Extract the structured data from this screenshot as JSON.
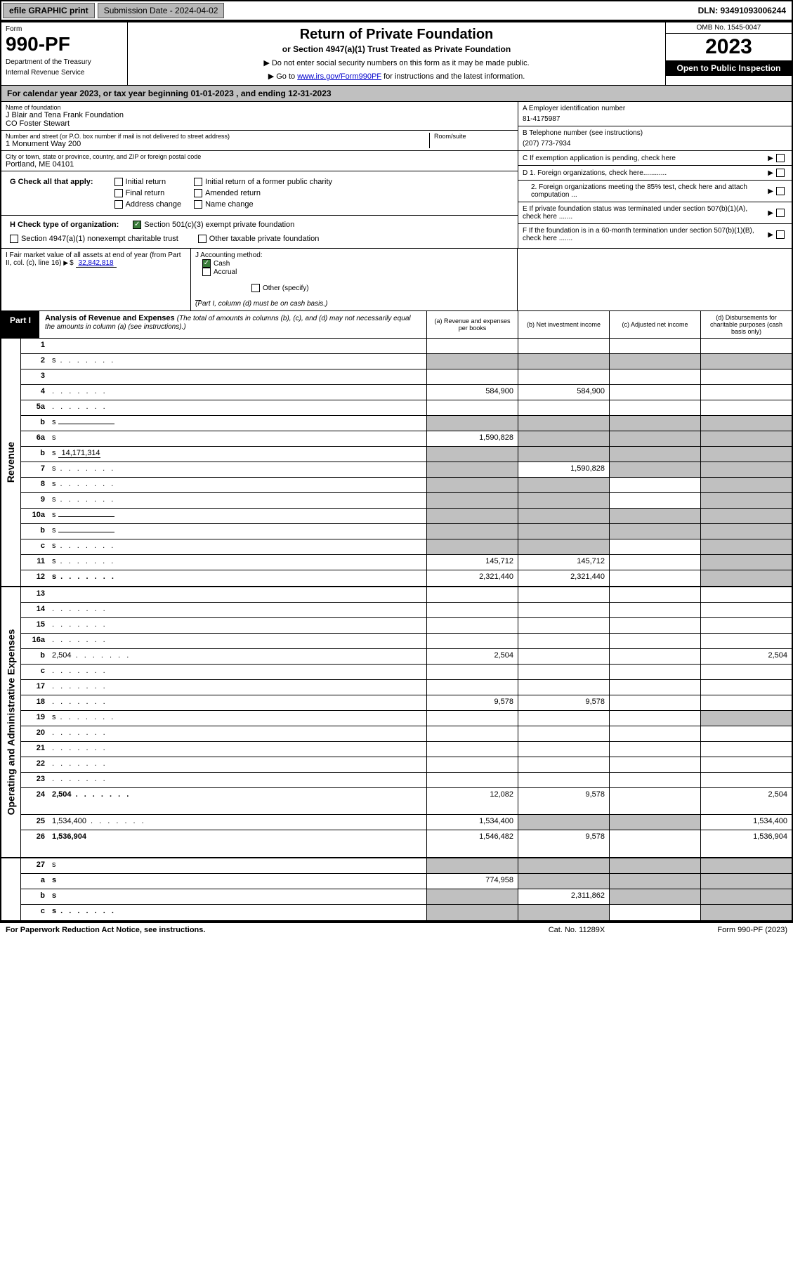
{
  "topbar": {
    "efile": "efile GRAPHIC print",
    "submission": "Submission Date - 2024-04-02",
    "dln": "DLN: 93491093006244"
  },
  "header": {
    "form_word": "Form",
    "form_number": "990-PF",
    "dept": "Department of the Treasury",
    "irs": "Internal Revenue Service",
    "title": "Return of Private Foundation",
    "subtitle": "or Section 4947(a)(1) Trust Treated as Private Foundation",
    "note1": "▶ Do not enter social security numbers on this form as it may be made public.",
    "note2_prefix": "▶ Go to ",
    "note2_link": "www.irs.gov/Form990PF",
    "note2_suffix": " for instructions and the latest information.",
    "omb": "OMB No. 1545-0047",
    "year": "2023",
    "open_public": "Open to Public Inspection"
  },
  "calendar": "For calendar year 2023, or tax year beginning 01-01-2023             , and ending 12-31-2023",
  "foundation": {
    "name_label": "Name of foundation",
    "name1": "J Blair and Tena Frank Foundation",
    "name2": "CO Foster Stewart",
    "addr_label": "Number and street (or P.O. box number if mail is not delivered to street address)",
    "addr": "1 Monument Way 200",
    "room_label": "Room/suite",
    "city_label": "City or town, state or province, country, and ZIP or foreign postal code",
    "city": "Portland, ME  04101"
  },
  "right_info": {
    "a_label": "A Employer identification number",
    "a_val": "81-4175987",
    "b_label": "B Telephone number (see instructions)",
    "b_val": "(207) 773-7934",
    "c_label": "C If exemption application is pending, check here",
    "d1_label": "D 1. Foreign organizations, check here............",
    "d2_label": "2. Foreign organizations meeting the 85% test, check here and attach computation ...",
    "e_label": "E  If private foundation status was terminated under section 507(b)(1)(A), check here .......",
    "f_label": "F  If the foundation is in a 60-month termination under section 507(b)(1)(B), check here ......."
  },
  "checks": {
    "g_label": "G Check all that apply:",
    "initial_return": "Initial return",
    "initial_former": "Initial return of a former public charity",
    "final_return": "Final return",
    "amended": "Amended return",
    "addr_change": "Address change",
    "name_change": "Name change",
    "h_label": "H Check type of organization:",
    "h_501c3": "Section 501(c)(3) exempt private foundation",
    "h_4947": "Section 4947(a)(1) nonexempt charitable trust",
    "h_other_tax": "Other taxable private foundation",
    "i_label": "I Fair market value of all assets at end of year (from Part II, col. (c), line 16)",
    "i_val": "32,842,818",
    "j_label": "J Accounting method:",
    "j_cash": "Cash",
    "j_accrual": "Accrual",
    "j_other": "Other (specify)",
    "j_note": "(Part I, column (d) must be on cash basis.)"
  },
  "part1": {
    "label": "Part I",
    "title": "Analysis of Revenue and Expenses",
    "note": "(The total of amounts in columns (b), (c), and (d) may not necessarily equal the amounts in column (a) (see instructions).)",
    "col_a": "(a)   Revenue and expenses per books",
    "col_b": "(b)   Net investment income",
    "col_c": "(c)   Adjusted net income",
    "col_d": "(d)   Disbursements for charitable purposes (cash basis only)"
  },
  "side_labels": {
    "revenue": "Revenue",
    "expenses": "Operating and Administrative Expenses"
  },
  "rows": [
    {
      "n": "1",
      "d": "",
      "a": "",
      "b": "",
      "c": ""
    },
    {
      "n": "2",
      "d": "s",
      "a": "s",
      "b": "s",
      "c": "s",
      "dotted": true
    },
    {
      "n": "3",
      "d": "",
      "a": "",
      "b": "",
      "c": ""
    },
    {
      "n": "4",
      "d": "",
      "a": "584,900",
      "b": "584,900",
      "c": "",
      "dotted": true
    },
    {
      "n": "5a",
      "d": "",
      "a": "",
      "b": "",
      "c": "",
      "dotted": true
    },
    {
      "n": "b",
      "d": "s",
      "a": "s",
      "b": "s",
      "c": "s",
      "inline": true
    },
    {
      "n": "6a",
      "d": "s",
      "a": "1,590,828",
      "b": "s",
      "c": "s"
    },
    {
      "n": "b",
      "d": "s",
      "a": "s",
      "b": "s",
      "c": "s",
      "inline_val": "14,171,314"
    },
    {
      "n": "7",
      "d": "s",
      "a": "s",
      "b": "1,590,828",
      "c": "s",
      "dotted": true
    },
    {
      "n": "8",
      "d": "s",
      "a": "s",
      "b": "s",
      "c": "",
      "dotted": true
    },
    {
      "n": "9",
      "d": "s",
      "a": "s",
      "b": "s",
      "c": "",
      "dotted": true
    },
    {
      "n": "10a",
      "d": "s",
      "a": "s",
      "b": "s",
      "c": "s",
      "inline": true
    },
    {
      "n": "b",
      "d": "s",
      "a": "s",
      "b": "s",
      "c": "s",
      "inline": true,
      "dotted": true
    },
    {
      "n": "c",
      "d": "s",
      "a": "s",
      "b": "s",
      "c": "",
      "dotted": true
    },
    {
      "n": "11",
      "d": "s",
      "a": "145,712",
      "b": "145,712",
      "c": "",
      "dotted": true
    },
    {
      "n": "12",
      "d": "s",
      "a": "2,321,440",
      "b": "2,321,440",
      "c": "",
      "bold": true,
      "dotted": true
    }
  ],
  "exp_rows": [
    {
      "n": "13",
      "d": "",
      "a": "",
      "b": "",
      "c": ""
    },
    {
      "n": "14",
      "d": "",
      "a": "",
      "b": "",
      "c": "",
      "dotted": true
    },
    {
      "n": "15",
      "d": "",
      "a": "",
      "b": "",
      "c": "",
      "dotted": true
    },
    {
      "n": "16a",
      "d": "",
      "a": "",
      "b": "",
      "c": "",
      "dotted": true
    },
    {
      "n": "b",
      "d": "2,504",
      "a": "2,504",
      "b": "",
      "c": "",
      "dotted": true
    },
    {
      "n": "c",
      "d": "",
      "a": "",
      "b": "",
      "c": "",
      "dotted": true
    },
    {
      "n": "17",
      "d": "",
      "a": "",
      "b": "",
      "c": "",
      "dotted": true
    },
    {
      "n": "18",
      "d": "",
      "a": "9,578",
      "b": "9,578",
      "c": "",
      "dotted": true
    },
    {
      "n": "19",
      "d": "s",
      "a": "",
      "b": "",
      "c": "",
      "dotted": true
    },
    {
      "n": "20",
      "d": "",
      "a": "",
      "b": "",
      "c": "",
      "dotted": true
    },
    {
      "n": "21",
      "d": "",
      "a": "",
      "b": "",
      "c": "",
      "dotted": true
    },
    {
      "n": "22",
      "d": "",
      "a": "",
      "b": "",
      "c": "",
      "dotted": true
    },
    {
      "n": "23",
      "d": "",
      "a": "",
      "b": "",
      "c": "",
      "dotted": true
    },
    {
      "n": "24",
      "d": "2,504",
      "a": "12,082",
      "b": "9,578",
      "c": "",
      "bold": true,
      "dotted": true,
      "tall": true
    },
    {
      "n": "25",
      "d": "1,534,400",
      "a": "1,534,400",
      "b": "s",
      "c": "s",
      "dotted": true
    },
    {
      "n": "26",
      "d": "1,536,904",
      "a": "1,546,482",
      "b": "9,578",
      "c": "",
      "bold": true,
      "tall": true
    }
  ],
  "bottom_rows": [
    {
      "n": "27",
      "d": "s",
      "a": "s",
      "b": "s",
      "c": "s"
    },
    {
      "n": "a",
      "d": "s",
      "a": "774,958",
      "b": "s",
      "c": "s",
      "bold": true
    },
    {
      "n": "b",
      "d": "s",
      "a": "s",
      "b": "2,311,862",
      "c": "s",
      "bold": true
    },
    {
      "n": "c",
      "d": "s",
      "a": "s",
      "b": "s",
      "c": "",
      "bold": true,
      "dotted": true
    }
  ],
  "footer": {
    "left": "For Paperwork Reduction Act Notice, see instructions.",
    "mid": "Cat. No. 11289X",
    "right": "Form 990-PF (2023)"
  }
}
